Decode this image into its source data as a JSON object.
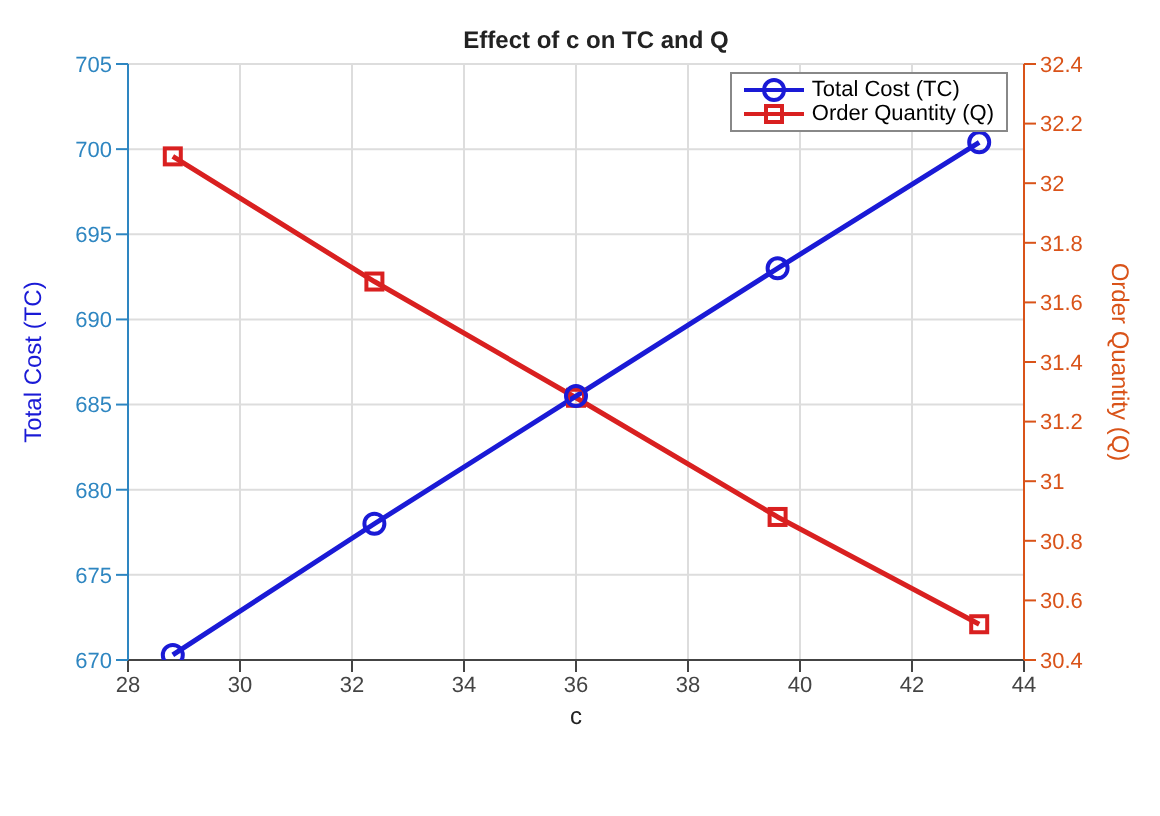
{
  "chart_data": {
    "type": "line",
    "title": "Effect of c on TC and Q",
    "xlabel": "c",
    "ylabel": "Total Cost (TC)",
    "y2label": "Order Quantity (Q)",
    "x": [
      28.8,
      32.4,
      36,
      39.6,
      43.2
    ],
    "series": [
      {
        "name": "Total Cost (TC)",
        "color": "#1a1ad6",
        "values": [
          670.3,
          678,
          685.5,
          693,
          700.4
        ],
        "marker": "circle"
      },
      {
        "name": "Order Quantity (Q)",
        "color": "#d92020",
        "values": [
          32.09,
          31.67,
          31.28,
          30.88,
          30.52
        ],
        "marker": "square",
        "axis": "y2"
      }
    ],
    "xlim": [
      28,
      44
    ],
    "xticks": [
      28,
      30,
      32,
      34,
      36,
      38,
      40,
      42,
      44
    ],
    "ylim": [
      670,
      705
    ],
    "yticks": [
      670,
      675,
      680,
      685,
      690,
      695,
      700,
      705
    ],
    "y2lim": [
      30.4,
      32.4
    ],
    "y2ticks": [
      30.4,
      30.6,
      30.8,
      31,
      31.2,
      31.4,
      31.6,
      31.8,
      32,
      32.2,
      32.4
    ],
    "grid": true,
    "legend": "top right",
    "line_style": "solid"
  }
}
